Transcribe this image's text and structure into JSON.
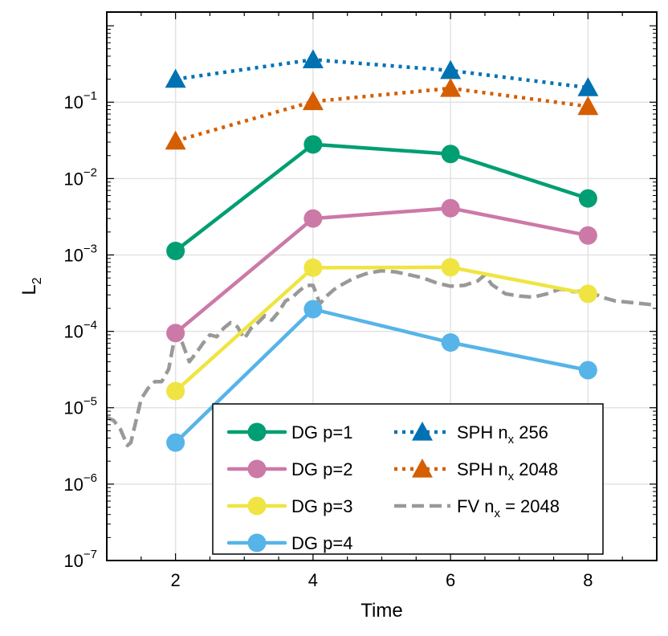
{
  "chart_data": {
    "type": "line",
    "title": "",
    "xlabel": "Time",
    "ylabel": "L",
    "ylabel_sub": "2",
    "yscale": "log",
    "xlim": [
      1,
      9
    ],
    "ylim_exp": [
      -7,
      0.18
    ],
    "grid": true,
    "xticks": [
      2,
      4,
      6,
      8
    ],
    "xtick_labels": [
      "2",
      "4",
      "6",
      "8"
    ],
    "yticks_exp": [
      -7,
      -6,
      -5,
      -4,
      -3,
      -2,
      -1
    ],
    "ytick_base": "10",
    "ytick_exps": [
      "−7",
      "−6",
      "−5",
      "−4",
      "−3",
      "−2",
      "−1"
    ],
    "legend_position": "bottom-right",
    "series": [
      {
        "name": "DG p=1",
        "label_main": "DG p=1",
        "sub": "",
        "label_tail": "",
        "style": "solid",
        "marker": "circle",
        "color": "#009E73",
        "x": [
          2,
          4,
          6,
          8
        ],
        "y": [
          0.00113,
          0.028,
          0.021,
          0.0055
        ]
      },
      {
        "name": "DG p=2",
        "label_main": "DG p=2",
        "sub": "",
        "label_tail": "",
        "style": "solid",
        "marker": "circle",
        "color": "#CC79A7",
        "x": [
          2,
          4,
          6,
          8
        ],
        "y": [
          9.5e-05,
          0.003,
          0.0041,
          0.0018
        ]
      },
      {
        "name": "DG p=3",
        "label_main": "DG p=3",
        "sub": "",
        "label_tail": "",
        "style": "solid",
        "marker": "circle",
        "color": "#F0E442",
        "x": [
          2,
          4,
          6,
          8
        ],
        "y": [
          1.65e-05,
          0.00068,
          0.00069,
          0.00031
        ]
      },
      {
        "name": "DG p=4",
        "label_main": "DG p=4",
        "sub": "",
        "label_tail": "",
        "style": "solid",
        "marker": "circle",
        "color": "#56B4E9",
        "x": [
          2,
          4,
          6,
          8
        ],
        "y": [
          3.5e-06,
          0.000195,
          7.15e-05,
          3.1e-05
        ]
      },
      {
        "name": "SPH nx 256",
        "label_main": "SPH n",
        "sub": "x",
        "label_tail": " 256",
        "style": "dotted",
        "marker": "triangle",
        "color": "#0072B2",
        "x": [
          2,
          4,
          6,
          8
        ],
        "y": [
          0.2,
          0.36,
          0.26,
          0.155
        ]
      },
      {
        "name": "SPH nx 2048",
        "label_main": "SPH n",
        "sub": "x",
        "label_tail": " 2048",
        "style": "dotted",
        "marker": "triangle",
        "color": "#D55E00",
        "x": [
          2,
          4,
          6,
          8
        ],
        "y": [
          0.031,
          0.102,
          0.152,
          0.088
        ]
      },
      {
        "name": "FV nx = 2048",
        "label_main": "FV n",
        "sub": "x",
        "label_tail": " = 2048",
        "style": "dashed",
        "marker": "none",
        "color": "#999999",
        "x": [
          1.0,
          1.1,
          1.2,
          1.3,
          1.35,
          1.5,
          1.6,
          1.7,
          1.8,
          1.9,
          2.0,
          2.1,
          2.2,
          2.3,
          2.4,
          2.5,
          2.6,
          2.7,
          2.8,
          2.9,
          3.0,
          3.1,
          3.2,
          3.3,
          3.4,
          3.5,
          3.6,
          3.7,
          3.8,
          3.9,
          4.0,
          4.1,
          4.2,
          4.3,
          4.4,
          4.6,
          4.8,
          5.0,
          5.2,
          5.4,
          5.6,
          5.8,
          6.0,
          6.2,
          6.4,
          6.5,
          6.6,
          6.8,
          7.0,
          7.2,
          7.4,
          7.6,
          7.8,
          8.0,
          8.2,
          8.4,
          8.6,
          8.8,
          9.0
        ],
        "y": [
          7.5e-06,
          6.8e-06,
          5.2e-06,
          3.2e-06,
          3.5e-06,
          1.3e-05,
          1.8e-05,
          2.2e-05,
          2.2e-05,
          3.2e-05,
          9.5e-05,
          7e-05,
          4e-05,
          5.2e-05,
          7e-05,
          9e-05,
          8.5e-05,
          0.00011,
          0.00013,
          0.000115,
          8e-05,
          0.00011,
          0.00013,
          0.00016,
          0.00014,
          0.00018,
          0.00025,
          0.00028,
          0.00034,
          0.0004,
          0.0004,
          0.00023,
          0.00029,
          0.00035,
          0.0004,
          0.0005,
          0.00058,
          0.00062,
          0.0006,
          0.00055,
          0.0005,
          0.00043,
          0.00039,
          0.0004,
          0.00046,
          0.00055,
          0.00041,
          0.00031,
          0.00029,
          0.00028,
          0.00031,
          0.00036,
          0.00033,
          0.00034,
          0.00028,
          0.00025,
          0.00024,
          0.00023,
          0.00022
        ]
      }
    ],
    "legend_columns": [
      [
        "DG p=1",
        "DG p=2",
        "DG p=3",
        "DG p=4"
      ],
      [
        "SPH nx 256",
        "SPH nx 2048",
        "FV nx = 2048"
      ]
    ]
  }
}
